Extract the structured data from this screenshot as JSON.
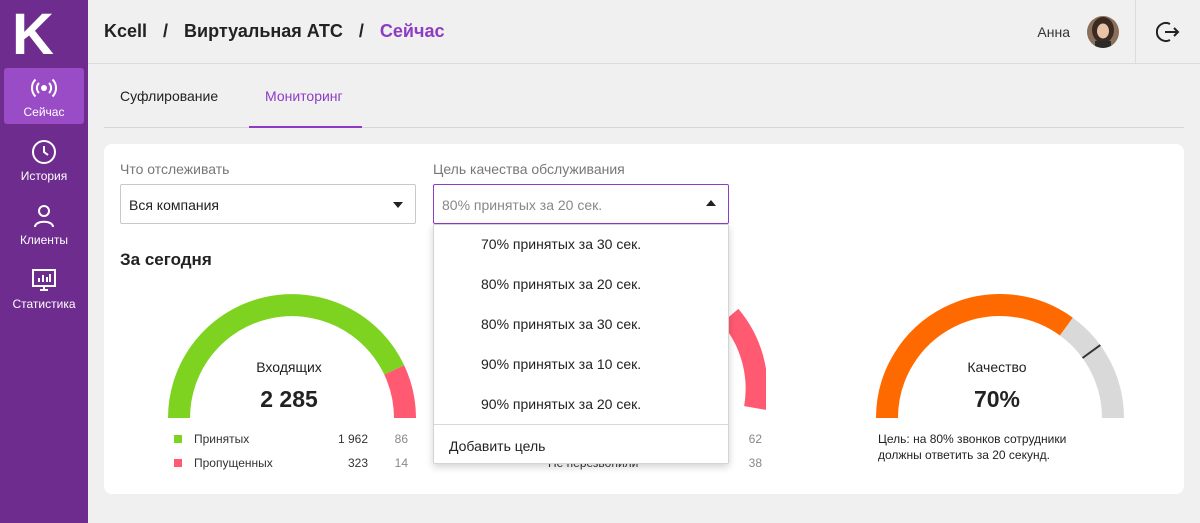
{
  "sidebar": {
    "logo_letter": "K",
    "items": [
      {
        "label": "Сейчас",
        "icon": "broadcast-icon",
        "active": true
      },
      {
        "label": "История",
        "icon": "clock-icon"
      },
      {
        "label": "Клиенты",
        "icon": "user-icon"
      },
      {
        "label": "Статистика",
        "icon": "monitor-chart-icon"
      }
    ]
  },
  "header": {
    "breadcrumb": [
      "Kcell",
      "Виртуальная АТС",
      "Сейчас"
    ],
    "separator": "/",
    "user_name": "Анна"
  },
  "tabs": [
    {
      "label": "Суфлирование",
      "active": false
    },
    {
      "label": "Мониторинг",
      "active": true
    }
  ],
  "filters": {
    "what_label": "Что отслеживать",
    "what_value": "Вся компания",
    "goal_label": "Цель качества обслуживания",
    "goal_value": "80% принятых за 20 сек."
  },
  "dropdown": {
    "options": [
      "70% принятых за 30 сек.",
      "80% принятых за 20 сек.",
      "80% принятых за 30 сек.",
      "90% принятых за 10 сек.",
      "90% принятых за 20 сек."
    ],
    "add_label": "Добавить цель"
  },
  "today": {
    "title": "За сегодня",
    "incoming": {
      "label": "Входящих",
      "value": "2 285",
      "accepted_fraction": 0.86,
      "legend": [
        {
          "label": "Принятых",
          "count": "1 962",
          "percent": "86",
          "color": "#7ed321"
        },
        {
          "label": "Пропущенных",
          "count": "323",
          "percent": "14",
          "color": "#ff5a72"
        }
      ]
    },
    "middle": {
      "legend_percents": [
        "62",
        "38"
      ],
      "partial_label": "Не перезвонили"
    },
    "quality": {
      "label": "Качество",
      "value": "70%",
      "fraction": 0.7,
      "target_fraction": 0.8,
      "note": "Цель: на 80% звонков сотрудники должны ответить за 20 секунд."
    }
  },
  "colors": {
    "brand_purple": "#6e2c8f",
    "accent_purple": "#8d3cc4",
    "green": "#7ed321",
    "red": "#ff5a72",
    "orange": "#ff6a00",
    "grey_arc": "#d9d9d9"
  }
}
